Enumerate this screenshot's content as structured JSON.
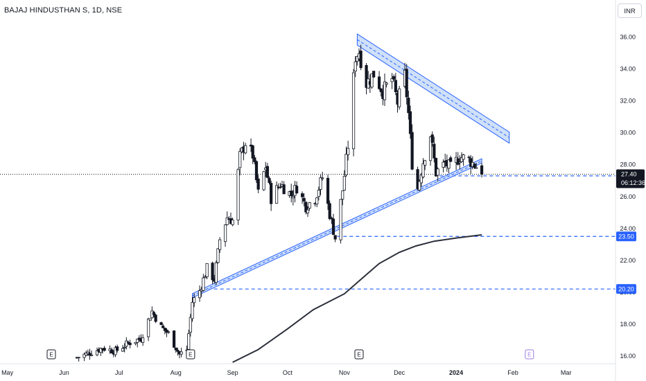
{
  "header": {
    "title": "BAJAJ HINDUSTHAN S, 1D, NSE",
    "currency": "INR"
  },
  "colors": {
    "candle_up_body": "#ffffff",
    "candle_down_body": "#131722",
    "candle_wick": "#131722",
    "moving_average": "#2a2e39",
    "trendline": "#2962ff",
    "channel_fill": "#bbd3f7",
    "level_line": "#2962ff",
    "price_tag": "#2962ff",
    "last_price_tag": "#131722"
  },
  "chart_data": {
    "type": "candlestick",
    "title": "BAJAJ HINDUSTHAN S, 1D, NSE",
    "currency": "INR",
    "ylim": [
      15.6,
      36.9
    ],
    "y_ticks": [
      16,
      18,
      20,
      22,
      24,
      26,
      28,
      30,
      32,
      34,
      36
    ],
    "y_tick_labels": [
      "16.00",
      "18.00",
      "20.00",
      "22.00",
      "24.00",
      "26.00",
      "28.00",
      "30.00",
      "32.00",
      "34.00",
      "36.00"
    ],
    "x_range": [
      "2023-04-27",
      "2024-03-28"
    ],
    "x_ticks": [
      {
        "label": "May",
        "date": "2023-05-01"
      },
      {
        "label": "Jun",
        "date": "2023-06-01"
      },
      {
        "label": "Jul",
        "date": "2023-07-01"
      },
      {
        "label": "Aug",
        "date": "2023-08-01"
      },
      {
        "label": "Sep",
        "date": "2023-09-01"
      },
      {
        "label": "Oct",
        "date": "2023-10-01"
      },
      {
        "label": "Nov",
        "date": "2023-11-01"
      },
      {
        "label": "Dec",
        "date": "2023-12-01"
      },
      {
        "label": "2024",
        "date": "2024-01-01",
        "bold": true
      },
      {
        "label": "Feb",
        "date": "2024-02-01"
      },
      {
        "label": "Mar",
        "date": "2024-03-01"
      }
    ],
    "last_price": {
      "value": 27.4,
      "label": "27.40",
      "countdown": "06:12:36"
    },
    "grid": false,
    "legend": "none",
    "path_keypoints": [
      [
        "2023-06-08",
        15.9
      ],
      [
        "2023-06-15",
        16.2
      ],
      [
        "2023-06-22",
        16.5
      ],
      [
        "2023-06-29",
        16.3
      ],
      [
        "2023-07-06",
        16.8
      ],
      [
        "2023-07-13",
        17.1
      ],
      [
        "2023-07-19",
        18.8
      ],
      [
        "2023-07-24",
        17.8
      ],
      [
        "2023-07-28",
        17.4
      ],
      [
        "2023-08-03",
        16.1
      ],
      [
        "2023-08-07",
        16.4
      ],
      [
        "2023-08-10",
        19.4
      ],
      [
        "2023-08-14",
        20.1
      ],
      [
        "2023-08-18",
        21.5
      ],
      [
        "2023-08-22",
        20.8
      ],
      [
        "2023-08-25",
        23.3
      ],
      [
        "2023-08-29",
        24.7
      ],
      [
        "2023-09-01",
        24.5
      ],
      [
        "2023-09-05",
        28.5
      ],
      [
        "2023-09-08",
        29.4
      ],
      [
        "2023-09-12",
        28.6
      ],
      [
        "2023-09-15",
        26.2
      ],
      [
        "2023-09-19",
        27.9
      ],
      [
        "2023-09-22",
        25.9
      ],
      [
        "2023-09-27",
        26.8
      ],
      [
        "2023-10-03",
        26.1
      ],
      [
        "2023-10-06",
        26.6
      ],
      [
        "2023-10-11",
        25.4
      ],
      [
        "2023-10-16",
        25.9
      ],
      [
        "2023-10-20",
        27.2
      ],
      [
        "2023-10-24",
        24.9
      ],
      [
        "2023-10-27",
        23.4
      ],
      [
        "2023-10-31",
        26.4
      ],
      [
        "2023-11-03",
        29.2
      ],
      [
        "2023-11-07",
        34.8
      ],
      [
        "2023-11-09",
        35.1
      ],
      [
        "2023-11-13",
        33.1
      ],
      [
        "2023-11-17",
        33.7
      ],
      [
        "2023-11-22",
        32.6
      ],
      [
        "2023-11-27",
        33.4
      ],
      [
        "2023-11-30",
        31.9
      ],
      [
        "2023-12-04",
        33.6
      ],
      [
        "2023-12-06",
        31.2
      ],
      [
        "2023-12-08",
        28.1
      ],
      [
        "2023-12-11",
        26.5
      ],
      [
        "2023-12-14",
        28.2
      ],
      [
        "2023-12-18",
        29.9
      ],
      [
        "2023-12-21",
        27.5
      ],
      [
        "2023-12-26",
        28.1
      ],
      [
        "2023-12-29",
        27.8
      ],
      [
        "2024-01-03",
        28.5
      ],
      [
        "2024-01-08",
        28.3
      ],
      [
        "2024-01-12",
        27.9
      ],
      [
        "2024-01-15",
        27.4
      ]
    ],
    "channels": [
      {
        "name": "",
        "from": [
          "2023-11-08",
          35.85
        ],
        "to": [
          "2024-01-30",
          29.7
        ],
        "half_width": 0.35,
        "dashed_center": true
      },
      {
        "name": "",
        "from": [
          "2023-08-10",
          19.78
        ],
        "to": [
          "2024-01-15",
          28.24
        ],
        "half_width": 0.13,
        "dashed_center": true
      }
    ],
    "moving_average": [
      [
        "2023-09-01",
        15.6
      ],
      [
        "2023-09-15",
        16.4
      ],
      [
        "2023-10-01",
        17.7
      ],
      [
        "2023-10-15",
        18.9
      ],
      [
        "2023-11-01",
        19.9
      ],
      [
        "2023-11-10",
        20.8
      ],
      [
        "2023-11-20",
        21.8
      ],
      [
        "2023-12-01",
        22.5
      ],
      [
        "2023-12-10",
        22.9
      ],
      [
        "2023-12-20",
        23.2
      ],
      [
        "2024-01-01",
        23.4
      ],
      [
        "2024-01-15",
        23.6
      ]
    ],
    "levels": [
      {
        "value": 27.3,
        "label": "27.30",
        "from": "2023-12-23"
      },
      {
        "value": 23.5,
        "label": "23.50",
        "from": "2023-10-28"
      },
      {
        "value": 20.2,
        "label": "20.20",
        "from": "2023-08-15"
      }
    ],
    "last_price_line": {
      "value": 27.4,
      "dotted": true
    },
    "events": [
      {
        "type": "earnings",
        "label": "E",
        "date": "2023-05-25"
      },
      {
        "type": "earnings",
        "label": "E",
        "date": "2023-08-09"
      },
      {
        "type": "earnings",
        "label": "E",
        "date": "2023-11-09"
      },
      {
        "type": "earnings-upcoming",
        "label": "E",
        "date": "2024-02-10"
      }
    ]
  }
}
